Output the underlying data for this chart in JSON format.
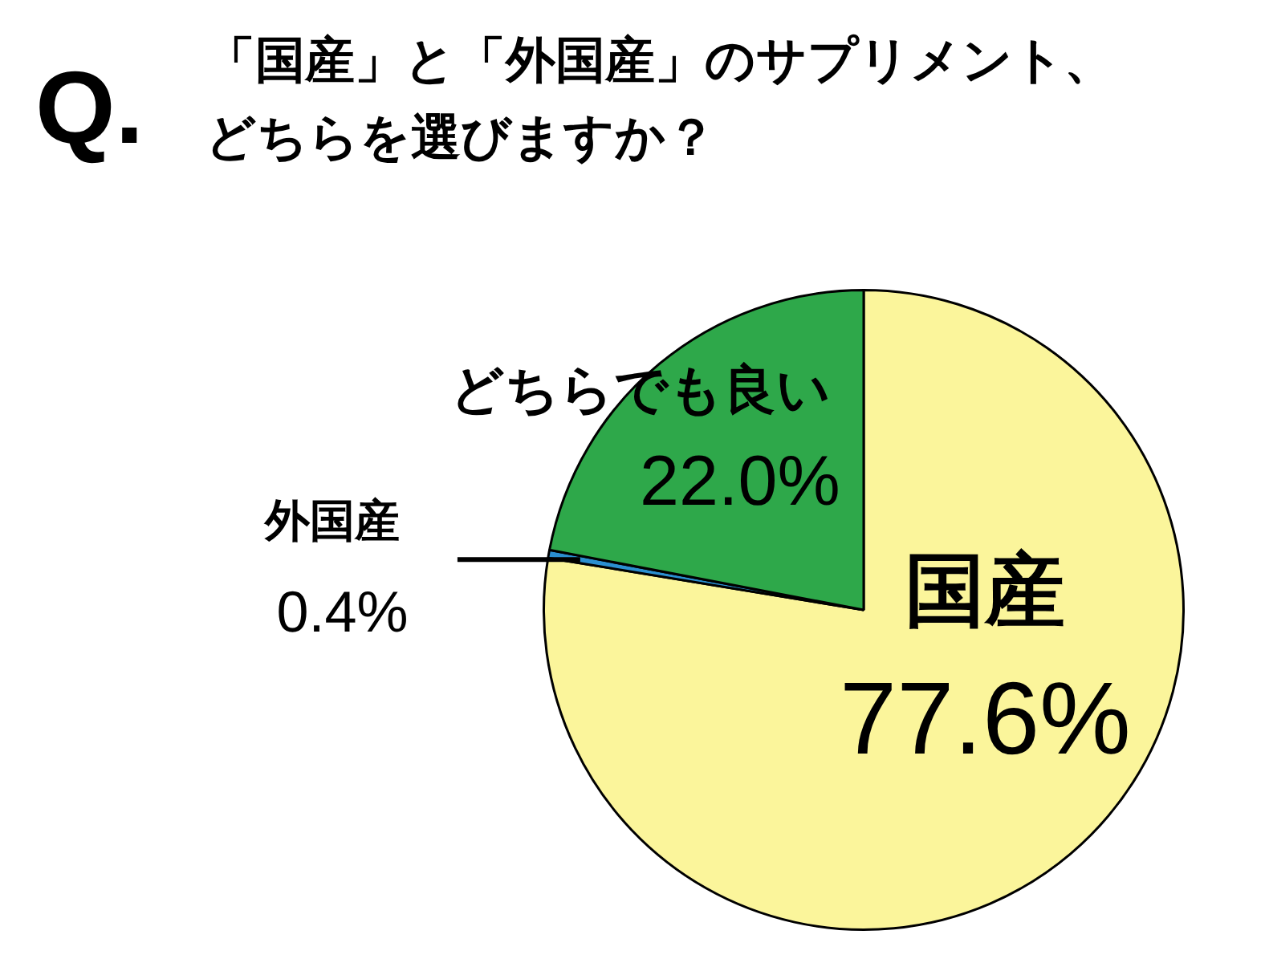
{
  "chart_data": {
    "type": "pie",
    "title": "Q.",
    "subtitle": "「国産」と「外国産」のサプリメント、どちらを選びますか？",
    "categories": [
      "国産",
      "外国産",
      "どちらでも良い"
    ],
    "values": [
      77.6,
      0.4,
      22.0
    ],
    "value_labels": [
      "77.6%",
      "0.4%",
      "22.0%"
    ],
    "colors": [
      "#fbf59b",
      "#2b8fd0",
      "#2ea84a"
    ],
    "legend": false
  }
}
